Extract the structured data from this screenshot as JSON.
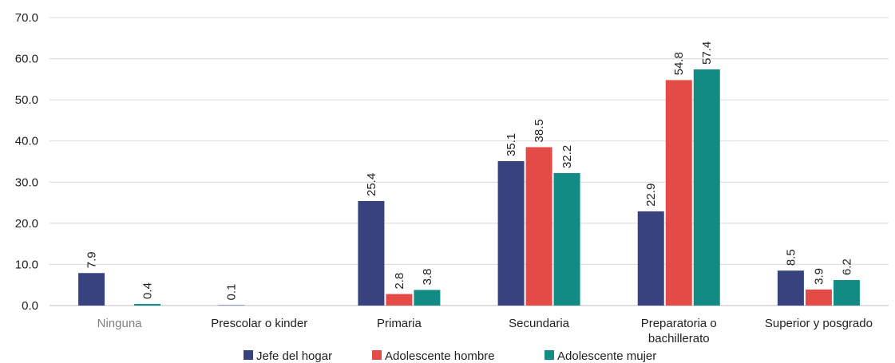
{
  "chart_data": {
    "type": "bar",
    "categories": [
      "Ninguna",
      "Prescolar o kinder",
      "Primaria",
      "Secundaria",
      "Preparatoria o bachillerato",
      "Superior y posgrado"
    ],
    "category_lines": [
      [
        "Ninguna"
      ],
      [
        "Prescolar o kinder"
      ],
      [
        "Primaria"
      ],
      [
        "Secundaria"
      ],
      [
        "Preparatoria o",
        "bachillerato"
      ],
      [
        "Superior y posgrado"
      ]
    ],
    "series": [
      {
        "name": "Jefe del hogar",
        "color": "#37427f",
        "values": [
          7.9,
          0.1,
          25.4,
          35.1,
          22.9,
          8.5
        ],
        "labels": [
          "7.9",
          "0.1",
          "25.4",
          "35.1",
          "22.9",
          "8.5"
        ]
      },
      {
        "name": "Adolescente hombre",
        "color": "#e44b47",
        "values": [
          null,
          null,
          2.8,
          38.5,
          54.8,
          3.9
        ],
        "labels": [
          "",
          "",
          "2.8",
          "38.5",
          "54.8",
          "3.9"
        ]
      },
      {
        "name": "Adolescente mujer",
        "color": "#128b85",
        "values": [
          0.4,
          null,
          3.8,
          32.2,
          57.4,
          6.2
        ],
        "labels": [
          "0.4",
          "",
          "3.8",
          "32.2",
          "57.4",
          "6.2"
        ]
      }
    ],
    "ylim": [
      0,
      70
    ],
    "yticks": [
      "0.0",
      "10.0",
      "20.0",
      "30.0",
      "40.0",
      "50.0",
      "60.0",
      "70.0"
    ],
    "grid": true,
    "legend_position": "bottom-center",
    "muted_category_color": "#808080",
    "title": "",
    "xlabel": "",
    "ylabel": ""
  }
}
